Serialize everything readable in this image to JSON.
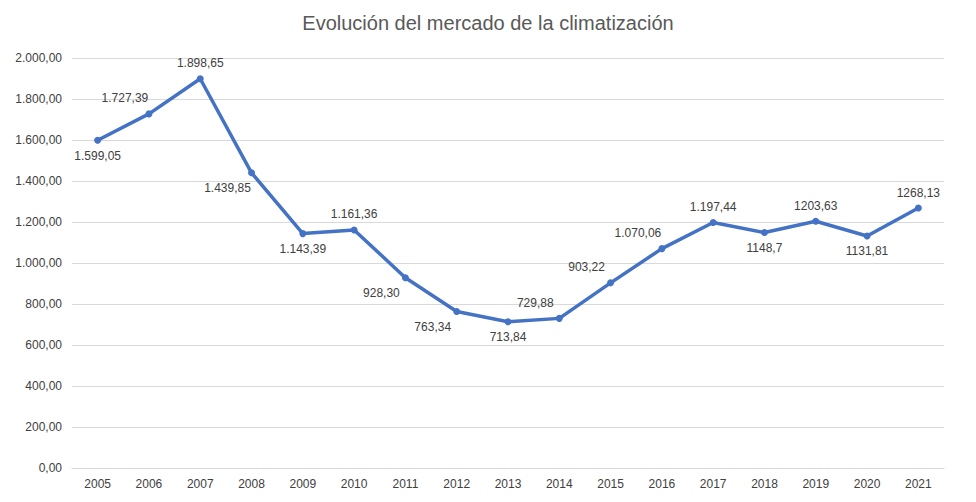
{
  "chart_data": {
    "type": "line",
    "title": "Evolución del mercado de la climatización",
    "categories": [
      "2005",
      "2006",
      "2007",
      "2008",
      "2009",
      "2010",
      "2011",
      "2012",
      "2013",
      "2014",
      "2015",
      "2016",
      "2017",
      "2018",
      "2019",
      "2020",
      "2021"
    ],
    "values": [
      1599.05,
      1727.39,
      1898.65,
      1439.85,
      1143.39,
      1161.36,
      928.3,
      763.34,
      713.84,
      729.88,
      903.22,
      1070.06,
      1197.44,
      1148.7,
      1203.63,
      1131.81,
      1268.13
    ],
    "value_labels": [
      "1.599,05",
      "1.727,39",
      "1.898,65",
      "1.439,85",
      "1.143,39",
      "1.161,36",
      "928,30",
      "763,34",
      "713,84",
      "729,88",
      "903,22",
      "1.070,06",
      "1.197,44",
      "1148,7",
      "1203,63",
      "1131,81",
      "1268,13"
    ],
    "color": "#4472c4",
    "marker": "circle",
    "ylim": [
      0,
      2000
    ],
    "yticks": [
      {
        "value": 0,
        "label": "0,00"
      },
      {
        "value": 200,
        "label": "200,00"
      },
      {
        "value": 400,
        "label": "400,00"
      },
      {
        "value": 600,
        "label": "600,00"
      },
      {
        "value": 800,
        "label": "800,00"
      },
      {
        "value": 1000,
        "label": "1.000,00"
      },
      {
        "value": 1200,
        "label": "1.200,00"
      },
      {
        "value": 1400,
        "label": "1.400,00"
      },
      {
        "value": 1600,
        "label": "1.600,00"
      },
      {
        "value": 1800,
        "label": "1.800,00"
      },
      {
        "value": 2000,
        "label": "2.000,00"
      }
    ],
    "grid": true,
    "data_labels": true
  }
}
